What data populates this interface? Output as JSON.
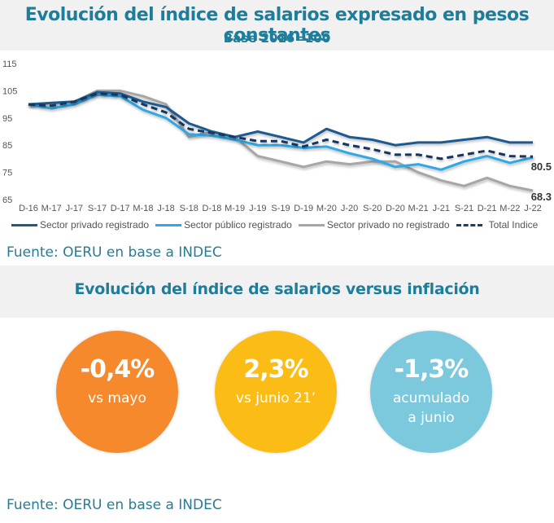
{
  "header": {
    "title": "Evolución del índice de salarios expresado en pesos constantes",
    "subtitle": "Base 2016=100"
  },
  "chart_data": {
    "type": "line",
    "title": "Evolución del índice de salarios expresado en pesos constantes",
    "subtitle": "Base 2016=100",
    "xlabel": "",
    "ylabel": "",
    "ylim": [
      65,
      115
    ],
    "yticks": [
      "115",
      "105",
      "95",
      "85",
      "75",
      "65"
    ],
    "ytick_values": [
      115,
      105,
      95,
      85,
      75,
      65
    ],
    "grid": false,
    "legend_position": "bottom",
    "x": [
      "D-16",
      "M-17",
      "J-17",
      "S-17",
      "D-17",
      "M-18",
      "J-18",
      "S-18",
      "D-18",
      "M-19",
      "J-19",
      "S-19",
      "D-19",
      "M-20",
      "J-20",
      "S-20",
      "D-20",
      "M-21",
      "J-21",
      "S-21",
      "D-21",
      "M-22",
      "J-22"
    ],
    "series": [
      {
        "name": "Sector privado no registrado",
        "color": "#a6a6a6",
        "style": "solid",
        "values": [
          100,
          100.5,
          101,
          105,
          105,
          103,
          100,
          88,
          90,
          88,
          81,
          79,
          77,
          79,
          78,
          79,
          79,
          75,
          72,
          70,
          73,
          70,
          68.3
        ]
      },
      {
        "name": "Sector público registrado",
        "color": "#2fa8e6",
        "style": "solid",
        "values": [
          100,
          98.5,
          100,
          103.5,
          103,
          98,
          95,
          89,
          88.5,
          87,
          85,
          85,
          84,
          84.5,
          82,
          80,
          77,
          78,
          76,
          79,
          81,
          78.5,
          80.5
        ]
      },
      {
        "name": "Sector privado registrado",
        "color": "#1c5a8f",
        "style": "solid",
        "values": [
          100,
          100.5,
          101,
          104.5,
          104,
          101,
          99,
          93,
          90,
          88,
          90,
          88,
          86,
          91,
          88,
          87,
          85,
          86,
          86,
          87,
          88,
          86,
          86
        ]
      },
      {
        "name": "Total Indice",
        "color": "#14365e",
        "style": "dashed",
        "values": [
          100,
          99.5,
          101,
          104,
          103.5,
          100,
          97,
          91,
          89.5,
          88,
          86.5,
          86.5,
          84.5,
          87,
          85,
          83.5,
          81.5,
          81.5,
          80,
          81.5,
          83,
          81,
          80.8
        ]
      }
    ],
    "annotations": [
      {
        "text": "80.5",
        "x": "J-22",
        "y": 80.5
      },
      {
        "text": "68.3",
        "x": "J-22",
        "y": 68.3
      }
    ]
  },
  "legend": [
    {
      "label": "Sector privado registrado",
      "color": "#1c5a8f"
    },
    {
      "label": "Sector público registrado",
      "color": "#2fa8e6"
    },
    {
      "label": "Sector privado no registrado",
      "color": "#a6a6a6"
    },
    {
      "label": "Total Indice",
      "color": "#14365e"
    }
  ],
  "source1": "Fuente: OERU en base a INDEC",
  "section2": {
    "title": "Evolución del índice de salarios versus inflación",
    "circles": [
      {
        "value": "-0,4%",
        "label": "vs mayo",
        "color": "#f5892c"
      },
      {
        "value": "2,3%",
        "label": "vs junio 21’",
        "color": "#fbbd15"
      },
      {
        "value": "-1,3%",
        "label_line1": "acumulado",
        "label_line2": "a junio",
        "color": "#7cc9de"
      }
    ]
  },
  "source2": "Fuente: OERU en base a INDEC"
}
